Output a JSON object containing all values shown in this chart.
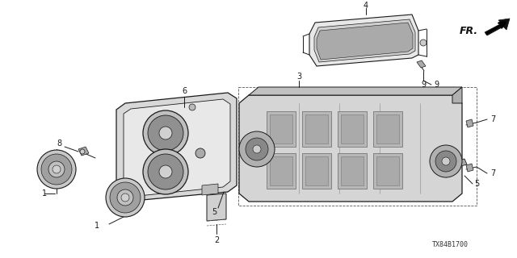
{
  "bg_color": "#ffffff",
  "diagram_title": "TX84B1700",
  "fr_label": "FR.",
  "line_color": "#1a1a1a",
  "label_fontsize": 7,
  "title_fontsize": 6
}
